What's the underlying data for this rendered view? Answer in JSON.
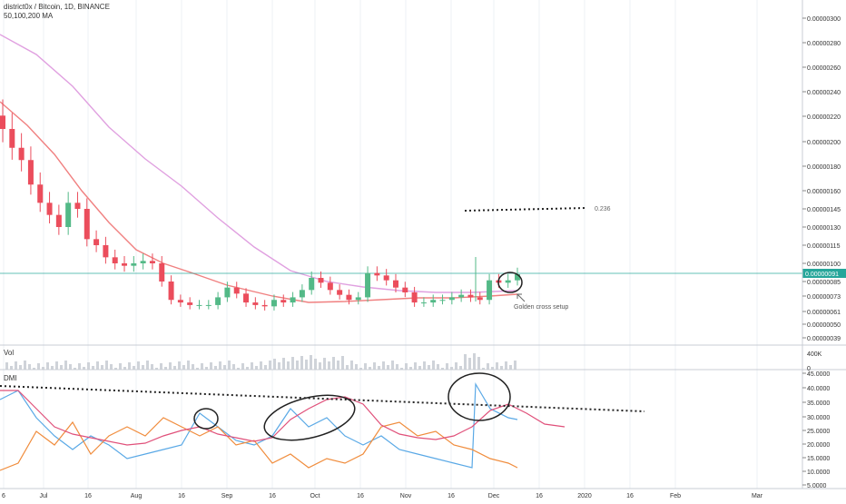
{
  "header": {
    "title": "district0x / Bitcoin, 1D, BINANCE",
    "ma_label": "50,100,200 MA"
  },
  "volume_label": "Vol",
  "dmi_label": "DMI",
  "colors": {
    "up": "#53b987",
    "down": "#eb4d5c",
    "ma50": "#f08080",
    "ma100": "#e0a0e0",
    "hline": "#26a69a",
    "di_plus": "#5aa9e6",
    "di_minus": "#f08c3c",
    "adx": "#e0507a",
    "price_tag": "#26a69a"
  },
  "chart_data": {
    "type": "candlestick",
    "price_axis_ticks": [
      "0.00000300",
      "0.00000280",
      "0.00000260",
      "0.00000240",
      "0.00000220",
      "0.00000200",
      "0.00000180",
      "0.00000160",
      "0.00000145",
      "0.00000130",
      "0.00000115",
      "0.00000100",
      "0.00000085",
      "0.00000073",
      "0.00000061",
      "0.00000050",
      "0.00000039"
    ],
    "time_axis_ticks": [
      "6",
      "Jul",
      "16",
      "Aug",
      "16",
      "Sep",
      "16",
      "Oct",
      "16",
      "Nov",
      "16",
      "Dec",
      "16",
      "2020",
      "16",
      "Feb",
      "Mar"
    ],
    "current_price": "0.00000091",
    "volume_axis_ticks": [
      "400K",
      "0"
    ],
    "dmi_axis_ticks": [
      "45.0000",
      "40.0000",
      "35.0000",
      "30.0000",
      "25.0000",
      "20.0000",
      "15.0000",
      "10.0000",
      "5.0000"
    ],
    "fib_label": "0.236",
    "annotation": "Golden cross setup",
    "series_close": [
      2.1e-06,
      1.95e-06,
      1.85e-06,
      1.65e-06,
      1.5e-06,
      1.4e-06,
      1.3e-06,
      1.5e-06,
      1.45e-06,
      1.2e-06,
      1.15e-06,
      1.05e-06,
      1e-06,
      9.8e-07,
      1e-06,
      1.02e-06,
      1e-06,
      8.5e-07,
      7e-07,
      6.8e-07,
      6.6e-07,
      6.6e-07,
      6.6e-07,
      7.2e-07,
      8e-07,
      7.5e-07,
      6.8e-07,
      6.6e-07,
      6.5e-07,
      7e-07,
      6.8e-07,
      7.2e-07,
      7.8e-07,
      8.8e-07,
      8.4e-07,
      7.8e-07,
      7.4e-07,
      7e-07,
      7.2e-07,
      9.2e-07,
      9e-07,
      8.6e-07,
      8e-07,
      7.6e-07,
      6.8e-07,
      6.8e-07,
      7e-07,
      7e-07,
      7.2e-07,
      7.4e-07,
      7.2e-07,
      7e-07,
      8.6e-07,
      8.4e-07,
      8.6e-07,
      9.1e-07
    ]
  }
}
